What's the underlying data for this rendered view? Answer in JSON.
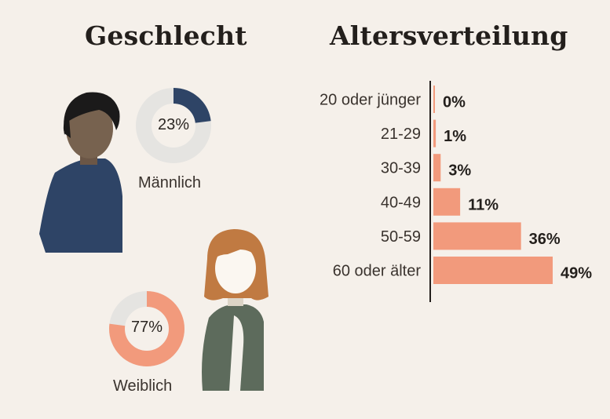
{
  "colors": {
    "background": "#f5f0ea",
    "male_segment": "#2e4466",
    "female_segment": "#f29a7c",
    "donut_track": "#e5e4e1",
    "bar": "#f29a7c",
    "axis": "#231f1c"
  },
  "gender": {
    "title": "Geschlecht",
    "male": {
      "label": "Männlich",
      "percent_label": "23%",
      "value": 23
    },
    "female": {
      "label": "Weiblich",
      "percent_label": "77%",
      "value": 77
    }
  },
  "chart_data": {
    "type": "bar",
    "orientation": "horizontal",
    "title": "Altersverteilung",
    "categories": [
      "20 oder jünger",
      "21-29",
      "30-39",
      "40-49",
      "50-59",
      "60 oder älter"
    ],
    "values": [
      0,
      1,
      3,
      11,
      36,
      49
    ],
    "value_labels": [
      "0%",
      "1%",
      "3%",
      "11%",
      "36%",
      "49%"
    ],
    "xlim": [
      0,
      49
    ],
    "unit": "%",
    "grid": false
  }
}
